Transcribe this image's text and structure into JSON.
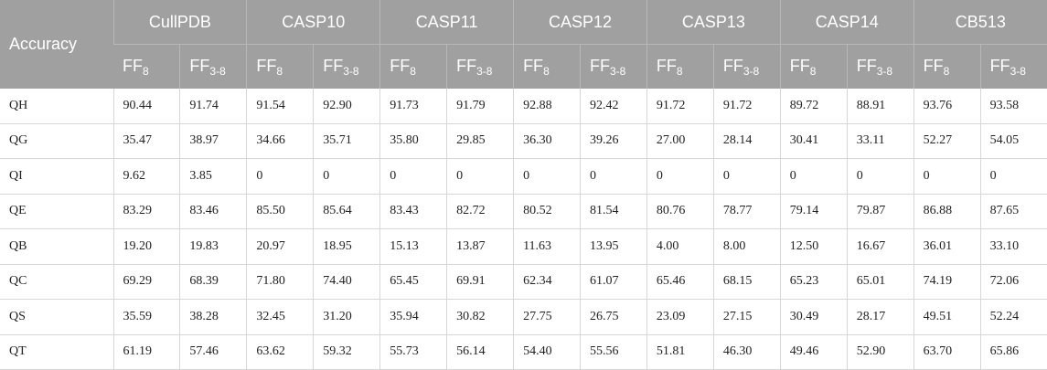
{
  "table": {
    "corner": "Accuracy",
    "groups": [
      "CullPDB",
      "CASP10",
      "CASP11",
      "CASP12",
      "CASP13",
      "CASP14",
      "CB513"
    ],
    "subheaders": [
      {
        "main": "FF",
        "sub": "8"
      },
      {
        "main": "FF",
        "sub": "3-8"
      },
      {
        "main": "FF",
        "sub": "8"
      },
      {
        "main": "FF",
        "sub": "3-8"
      },
      {
        "main": "FF",
        "sub": "8"
      },
      {
        "main": "FF",
        "sub": "3-8"
      },
      {
        "main": "FF",
        "sub": "8"
      },
      {
        "main": "FF",
        "sub": "3-8"
      },
      {
        "main": "FF",
        "sub": "8"
      },
      {
        "main": "FF",
        "sub": "3-8"
      },
      {
        "main": "FF",
        "sub": "8"
      },
      {
        "main": "FF",
        "sub": "3-8"
      },
      {
        "main": "FF",
        "sub": "8"
      },
      {
        "main": "FF",
        "sub": "3-8"
      }
    ],
    "rows": [
      [
        "QH",
        "90.44",
        "91.74",
        "91.54",
        "92.90",
        "91.73",
        "91.79",
        "92.88",
        "92.42",
        "91.72",
        "91.72",
        "89.72",
        "88.91",
        "93.76",
        "93.58"
      ],
      [
        "QG",
        "35.47",
        "38.97",
        "34.66",
        "35.71",
        "35.80",
        "29.85",
        "36.30",
        "39.26",
        "27.00",
        "28.14",
        "30.41",
        "33.11",
        "52.27",
        "54.05"
      ],
      [
        "QI",
        "9.62",
        "3.85",
        "0",
        "0",
        "0",
        "0",
        "0",
        "0",
        "0",
        "0",
        "0",
        "0",
        "0",
        "0"
      ],
      [
        "QE",
        "83.29",
        "83.46",
        "85.50",
        "85.64",
        "83.43",
        "82.72",
        "80.52",
        "81.54",
        "80.76",
        "78.77",
        "79.14",
        "79.87",
        "86.88",
        "87.65"
      ],
      [
        "QB",
        "19.20",
        "19.83",
        "20.97",
        "18.95",
        "15.13",
        "13.87",
        "11.63",
        "13.95",
        "4.00",
        "8.00",
        "12.50",
        "16.67",
        "36.01",
        "33.10"
      ],
      [
        "QC",
        "69.29",
        "68.39",
        "71.80",
        "74.40",
        "65.45",
        "69.91",
        "62.34",
        "61.07",
        "65.46",
        "68.15",
        "65.23",
        "65.01",
        "74.19",
        "72.06"
      ],
      [
        "QS",
        "35.59",
        "38.28",
        "32.45",
        "31.20",
        "35.94",
        "30.82",
        "27.75",
        "26.75",
        "23.09",
        "27.15",
        "30.49",
        "28.17",
        "49.51",
        "52.24"
      ],
      [
        "QT",
        "61.19",
        "57.46",
        "63.62",
        "59.32",
        "55.73",
        "56.14",
        "54.40",
        "55.56",
        "51.81",
        "46.30",
        "49.46",
        "52.90",
        "63.70",
        "65.86"
      ]
    ]
  }
}
